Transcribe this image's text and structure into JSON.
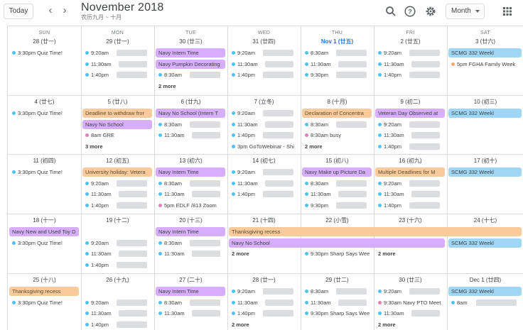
{
  "header": {
    "today_label": "Today",
    "prev_icon": "chevron-left-icon",
    "next_icon": "chevron-right-icon",
    "title": "November 2018",
    "subtitle": "农历九月 ~ 十月",
    "view_label": "Month",
    "icons": [
      "search-icon",
      "help-icon",
      "settings-icon",
      "apps-grid-icon"
    ]
  },
  "colors": {
    "lavender": "#d7aefb",
    "peach": "#f9cb9c",
    "blue": "#9fd6f5",
    "today": "#1a73e8"
  },
  "weekdays": [
    "SUN",
    "MON",
    "TUE",
    "WED",
    "THU",
    "FRI",
    "SAT"
  ],
  "weeks": [
    {
      "days": [
        {
          "label": "28 (廿一)",
          "events": [
            {
              "text": "3:30pm Quiz Time!",
              "style": "dot",
              "dot": "#4fc3f7"
            }
          ]
        },
        {
          "label": "29 (廿一)",
          "events": [
            {
              "text": "9:20am",
              "style": "dot",
              "dot": "#4fc3f7"
            },
            {
              "text": "11:30am",
              "style": "dot",
              "dot": "#4fc3f7"
            },
            {
              "text": "1:40pm",
              "style": "dot",
              "dot": "#4fc3f7"
            }
          ]
        },
        {
          "label": "30 (廿三)",
          "events": [
            {
              "text": "Navy Intern Time",
              "style": "lav"
            },
            {
              "text": "Navy Pumpkin Decorating",
              "style": "lav"
            },
            {
              "text": "8:30am",
              "style": "dot",
              "dot": "#4fc3f7"
            },
            {
              "text": "2 more",
              "style": "more"
            }
          ]
        },
        {
          "label": "31 (廿四)",
          "events": [
            {
              "text": "9:20am",
              "style": "dot",
              "dot": "#4fc3f7"
            },
            {
              "text": "11:30am",
              "style": "dot",
              "dot": "#4fc3f7"
            },
            {
              "text": "1:40pm",
              "style": "dot",
              "dot": "#4fc3f7"
            }
          ]
        },
        {
          "label": "Nov 1 (廿五)",
          "today": true,
          "events": [
            {
              "text": "8:30am",
              "style": "dot",
              "dot": "#4fc3f7"
            },
            {
              "text": "11:30am",
              "style": "dot",
              "dot": "#4fc3f7"
            },
            {
              "text": "9:30pm",
              "style": "dot",
              "dot": "#4fc3f7"
            }
          ]
        },
        {
          "label": "2 (廿五)",
          "events": [
            {
              "text": "9:20am",
              "style": "dot",
              "dot": "#4fc3f7"
            },
            {
              "text": "11:30am",
              "style": "dot",
              "dot": "#4fc3f7"
            },
            {
              "text": "1:40pm",
              "style": "dot",
              "dot": "#4fc3f7"
            }
          ]
        },
        {
          "label": "3 (廿六)",
          "events": [
            {
              "text": "SCMG 332 Weekl",
              "style": "blue"
            },
            {
              "text": "5pm FGHA Family Week",
              "style": "dot",
              "dot": "#f6a96a"
            }
          ]
        }
      ]
    },
    {
      "days": [
        {
          "label": "4 (廿七)",
          "events": [
            {
              "text": "3:30pm Quiz Time!",
              "style": "dot",
              "dot": "#4fc3f7"
            }
          ]
        },
        {
          "label": "5 (廿八)",
          "events": [
            {
              "text": "Deadline to withdraw fror",
              "style": "peach"
            },
            {
              "text": "Navy No School",
              "style": "lav"
            },
            {
              "text": "8am GRE",
              "style": "dot",
              "dot": "#e57eb4"
            },
            {
              "text": "3 more",
              "style": "more"
            }
          ]
        },
        {
          "label": "6 (廿九)",
          "events": [
            {
              "text": "Navy No School (Intern T",
              "style": "lav"
            },
            {
              "text": "8:30am",
              "style": "dot",
              "dot": "#4fc3f7"
            },
            {
              "text": "11:30am",
              "style": "dot",
              "dot": "#4fc3f7"
            }
          ]
        },
        {
          "label": "7 (立冬)",
          "events": [
            {
              "text": "9:20am",
              "style": "dot",
              "dot": "#4fc3f7"
            },
            {
              "text": "11:30am",
              "style": "dot",
              "dot": "#4fc3f7"
            },
            {
              "text": "1:40pm",
              "style": "dot",
              "dot": "#4fc3f7"
            },
            {
              "text": "3pm GoToWebinar - Shi",
              "style": "dot",
              "dot": "#4fc3f7"
            }
          ]
        },
        {
          "label": "8 (十月)",
          "events": [
            {
              "text": "Declaration of Concentra",
              "style": "peach"
            },
            {
              "text": "8:30am",
              "style": "dot",
              "dot": "#4fc3f7"
            },
            {
              "text": "8:30am busy",
              "style": "dot",
              "dot": "#e57eb4"
            },
            {
              "text": "2 more",
              "style": "more"
            }
          ]
        },
        {
          "label": "9 (初二)",
          "events": [
            {
              "text": "Veteran Day Observed at",
              "style": "lav"
            },
            {
              "text": "9:20am",
              "style": "dot",
              "dot": "#4fc3f7"
            },
            {
              "text": "11:30am",
              "style": "dot",
              "dot": "#4fc3f7"
            },
            {
              "text": "1:40pm",
              "style": "dot",
              "dot": "#4fc3f7"
            }
          ]
        },
        {
          "label": "10 (初三)",
          "events": [
            {
              "text": "SCMG 332 Weekl",
              "style": "blue"
            }
          ]
        }
      ]
    },
    {
      "days": [
        {
          "label": "11 (初四)",
          "events": [
            {
              "text": "3:30pm Quiz Time!",
              "style": "dot",
              "dot": "#4fc3f7"
            }
          ]
        },
        {
          "label": "12 (初五)",
          "events": [
            {
              "text": "University holiday: Vetera",
              "style": "peach"
            },
            {
              "text": "9:20am",
              "style": "dot",
              "dot": "#4fc3f7"
            },
            {
              "text": "11:30am",
              "style": "dot",
              "dot": "#4fc3f7"
            },
            {
              "text": "1:40pm",
              "style": "dot",
              "dot": "#4fc3f7"
            }
          ]
        },
        {
          "label": "13 (初六)",
          "events": [
            {
              "text": "Navy Intern Time",
              "style": "lav"
            },
            {
              "text": "8:30am",
              "style": "dot",
              "dot": "#4fc3f7"
            },
            {
              "text": "11:30am",
              "style": "dot",
              "dot": "#4fc3f7"
            },
            {
              "text": "5pm EDLF /813 Zoom",
              "style": "dot",
              "dot": "#e57eb4"
            }
          ]
        },
        {
          "label": "14 (初七)",
          "events": [
            {
              "text": "9:20am",
              "style": "dot",
              "dot": "#4fc3f7"
            },
            {
              "text": "11:30am",
              "style": "dot",
              "dot": "#4fc3f7"
            },
            {
              "text": "1:40pm",
              "style": "dot",
              "dot": "#4fc3f7"
            }
          ]
        },
        {
          "label": "15 (初八)",
          "events": [
            {
              "text": "Navy Make up Picture Da",
              "style": "lav"
            },
            {
              "text": "8:30am",
              "style": "dot",
              "dot": "#4fc3f7"
            },
            {
              "text": "11:30am",
              "style": "dot",
              "dot": "#4fc3f7"
            },
            {
              "text": "9:30pm",
              "style": "dot",
              "dot": "#4fc3f7"
            }
          ]
        },
        {
          "label": "16 (初九)",
          "events": [
            {
              "text": "Multiple Deadlines for M",
              "style": "peach"
            },
            {
              "text": "9:20am",
              "style": "dot",
              "dot": "#4fc3f7"
            },
            {
              "text": "11:30am",
              "style": "dot",
              "dot": "#4fc3f7"
            },
            {
              "text": "1:40pm",
              "style": "dot",
              "dot": "#4fc3f7"
            }
          ]
        },
        {
          "label": "17 (初十)",
          "events": [
            {
              "text": "SCMG 332 Weekl",
              "style": "blue"
            }
          ]
        }
      ]
    },
    {
      "days": [
        {
          "label": "18 (十一)",
          "events": [
            {
              "text": "Navy New and Used Toy D",
              "style": "lav"
            },
            {
              "text": "3:30pm Quiz Time!",
              "style": "dot",
              "dot": "#4fc3f7"
            }
          ]
        },
        {
          "label": "19 (十二)",
          "events": [
            {
              "text": "",
              "style": "spacer"
            },
            {
              "text": "9:20am",
              "style": "dot",
              "dot": "#4fc3f7"
            },
            {
              "text": "11:30am",
              "style": "dot",
              "dot": "#4fc3f7"
            },
            {
              "text": "1:40pm",
              "style": "dot",
              "dot": "#4fc3f7"
            }
          ]
        },
        {
          "label": "20 (十三)",
          "events": [
            {
              "text": "Navy Intern Time",
              "style": "lav"
            },
            {
              "text": "8:30am",
              "style": "dot",
              "dot": "#4fc3f7"
            },
            {
              "text": "11:30am",
              "style": "dot",
              "dot": "#4fc3f7"
            }
          ]
        },
        {
          "label": "21 (十四)",
          "events": [
            {
              "text": "",
              "style": "spacer"
            },
            {
              "text": "",
              "style": "spacer"
            },
            {
              "text": "2 more",
              "style": "more"
            }
          ]
        },
        {
          "label": "22 (小雪)",
          "events": [
            {
              "text": "",
              "style": "spacer"
            },
            {
              "text": "",
              "style": "spacer"
            },
            {
              "text": "9:30pm Sharp Says Wee",
              "style": "dot",
              "dot": "#4fc3f7"
            }
          ]
        },
        {
          "label": "23 (十六)",
          "events": [
            {
              "text": "",
              "style": "spacer"
            },
            {
              "text": "",
              "style": "spacer"
            },
            {
              "text": "2 more",
              "style": "more"
            }
          ]
        },
        {
          "label": "24 (十七)",
          "events": [
            {
              "text": "",
              "style": "spacer"
            },
            {
              "text": "SCMG 332 Weekl",
              "style": "blue"
            }
          ]
        }
      ],
      "spans": [
        {
          "text": "Thanksgiving recess",
          "style": "peach",
          "start": 3,
          "end": 6,
          "row": 0
        },
        {
          "text": "Navy No School",
          "style": "lav",
          "start": 3,
          "end": 5,
          "row": 1
        }
      ]
    },
    {
      "days": [
        {
          "label": "25 (十八)",
          "events": [
            {
              "text": "Thanksgiving recess",
              "style": "peach"
            },
            {
              "text": "3:30pm Quiz Time!",
              "style": "dot",
              "dot": "#4fc3f7"
            }
          ]
        },
        {
          "label": "26 (十九)",
          "events": [
            {
              "text": "",
              "style": "spacer"
            },
            {
              "text": "9:20am",
              "style": "dot",
              "dot": "#4fc3f7"
            },
            {
              "text": "11:30am",
              "style": "dot",
              "dot": "#4fc3f7"
            },
            {
              "text": "1:40pm",
              "style": "dot",
              "dot": "#4fc3f7"
            }
          ]
        },
        {
          "label": "27 (二十)",
          "events": [
            {
              "text": "Navy Intern Time",
              "style": "lav"
            },
            {
              "text": "8:30am",
              "style": "dot",
              "dot": "#4fc3f7"
            },
            {
              "text": "11:30am",
              "style": "dot",
              "dot": "#4fc3f7"
            }
          ]
        },
        {
          "label": "28 (廿一)",
          "events": [
            {
              "text": "9:20am",
              "style": "dot",
              "dot": "#4fc3f7"
            },
            {
              "text": "11:30am",
              "style": "dot",
              "dot": "#4fc3f7"
            },
            {
              "text": "1:40pm",
              "style": "dot",
              "dot": "#4fc3f7"
            },
            {
              "text": "2 more",
              "style": "more"
            }
          ]
        },
        {
          "label": "29 (廿二)",
          "events": [
            {
              "text": "8:30am",
              "style": "dot",
              "dot": "#4fc3f7"
            },
            {
              "text": "11:30am",
              "style": "dot",
              "dot": "#4fc3f7"
            },
            {
              "text": "9:30pm Sharp Says Wee",
              "style": "dot",
              "dot": "#4fc3f7"
            }
          ]
        },
        {
          "label": "30 (廿三)",
          "events": [
            {
              "text": "9:20am",
              "style": "dot",
              "dot": "#4fc3f7"
            },
            {
              "text": "9:30am Navy PTO Meet",
              "style": "dot",
              "dot": "#e57eb4"
            },
            {
              "text": "11:30am",
              "style": "dot",
              "dot": "#4fc3f7"
            },
            {
              "text": "2 more",
              "style": "more"
            }
          ]
        },
        {
          "label": "Dec 1 (廿四)",
          "events": [
            {
              "text": "SCMG 332 Weekl",
              "style": "blue"
            },
            {
              "text": "8am",
              "style": "dot",
              "dot": "#4fc3f7"
            }
          ]
        }
      ]
    }
  ],
  "blurred_suffix": {
    "29_9:20am": "MGMT 3",
    "29_11:30am": "UCWR",
    "29_1:40pm": "SCMG 3",
    "30_8:30am": "Bibong ENTR 20"
  }
}
